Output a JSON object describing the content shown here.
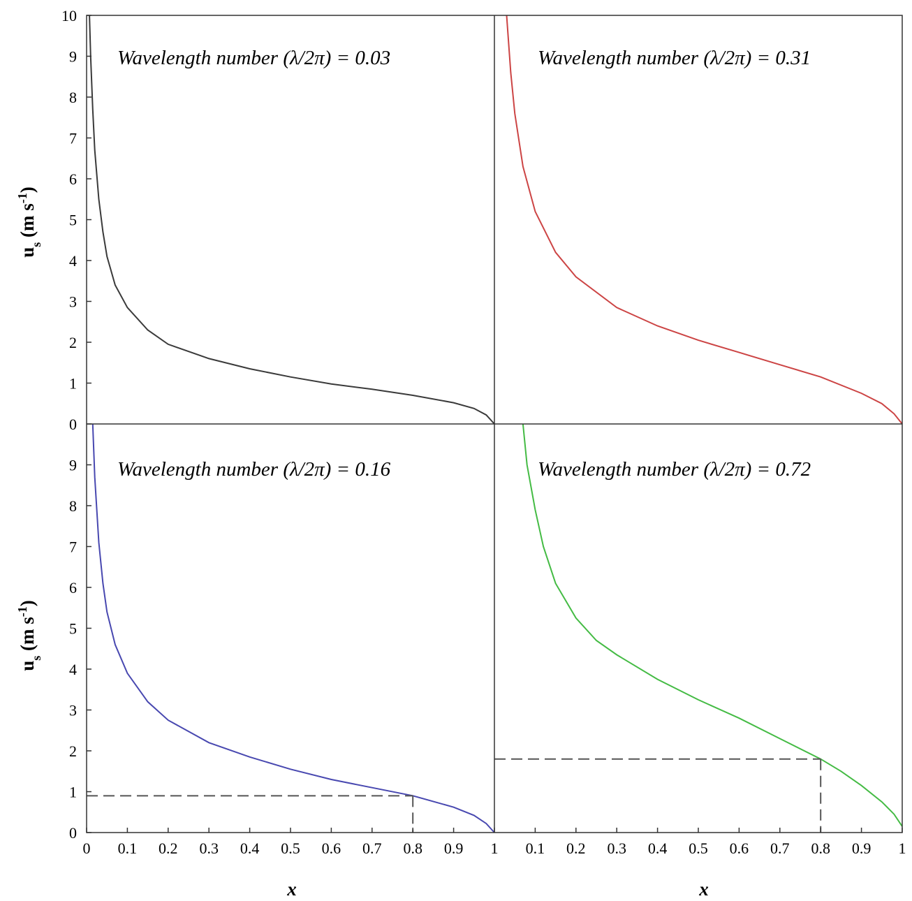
{
  "chart_data": [
    {
      "type": "line",
      "panel": "top-left",
      "title": "Wavelength number (λ/2π) = 0.03",
      "xlabel": "",
      "ylabel": "u_s (m s^-1)",
      "ylim": [
        0,
        10
      ],
      "xlim": [
        0,
        1
      ],
      "yticks": [
        "0",
        "1",
        "2",
        "3",
        "4",
        "5",
        "6",
        "7",
        "8",
        "9",
        "10"
      ],
      "xticks": [],
      "color": "#3a3a3a",
      "series": [
        {
          "x": [
            0.007,
            0.01,
            0.015,
            0.02,
            0.03,
            0.04,
            0.05,
            0.07,
            0.1,
            0.15,
            0.2,
            0.3,
            0.4,
            0.5,
            0.6,
            0.7,
            0.8,
            0.9,
            0.95,
            0.98,
            1.0
          ],
          "y": [
            10,
            9.0,
            7.7,
            6.7,
            5.5,
            4.7,
            4.1,
            3.4,
            2.85,
            2.3,
            1.95,
            1.6,
            1.35,
            1.15,
            0.98,
            0.85,
            0.7,
            0.52,
            0.38,
            0.22,
            0.0
          ]
        }
      ]
    },
    {
      "type": "line",
      "panel": "top-right",
      "title": "Wavelength number (λ/2π) = 0.31",
      "xlabel": "",
      "ylabel": "",
      "ylim": [
        0,
        10
      ],
      "xlim": [
        0,
        1
      ],
      "yticks": [],
      "xticks": [],
      "color": "#cc4444",
      "series": [
        {
          "x": [
            0.03,
            0.04,
            0.05,
            0.07,
            0.1,
            0.15,
            0.2,
            0.3,
            0.4,
            0.5,
            0.6,
            0.7,
            0.8,
            0.9,
            0.95,
            0.98,
            1.0
          ],
          "y": [
            10,
            8.6,
            7.6,
            6.3,
            5.2,
            4.2,
            3.6,
            2.85,
            2.4,
            2.05,
            1.75,
            1.45,
            1.15,
            0.75,
            0.5,
            0.25,
            0.0
          ]
        }
      ]
    },
    {
      "type": "line",
      "panel": "bottom-left",
      "title": "Wavelength number (λ/2π) = 0.16",
      "xlabel": "x",
      "ylabel": "u_s (m s^-1)",
      "ylim": [
        0,
        10
      ],
      "xlim": [
        0,
        1
      ],
      "yticks": [
        "0",
        "1",
        "2",
        "3",
        "4",
        "5",
        "6",
        "7",
        "8",
        "9"
      ],
      "xticks": [
        "0",
        "0.1",
        "0.2",
        "0.3",
        "0.4",
        "0.5",
        "0.6",
        "0.7",
        "0.8",
        "0.9",
        "1"
      ],
      "color": "#4848b0",
      "series": [
        {
          "x": [
            0.015,
            0.02,
            0.03,
            0.04,
            0.05,
            0.07,
            0.1,
            0.15,
            0.2,
            0.3,
            0.4,
            0.5,
            0.6,
            0.7,
            0.8,
            0.9,
            0.95,
            0.98,
            1.0
          ],
          "y": [
            10,
            8.7,
            7.1,
            6.1,
            5.4,
            4.6,
            3.9,
            3.2,
            2.75,
            2.2,
            1.85,
            1.55,
            1.3,
            1.1,
            0.9,
            0.62,
            0.42,
            0.22,
            0.0
          ]
        }
      ],
      "reference": {
        "x": 0.8,
        "y": 0.9
      }
    },
    {
      "type": "line",
      "panel": "bottom-right",
      "title": "Wavelength number (λ/2π) = 0.72",
      "xlabel": "x",
      "ylabel": "",
      "ylim": [
        0,
        10
      ],
      "xlim": [
        0,
        1
      ],
      "yticks": [],
      "xticks": [
        "0.1",
        "0.2",
        "0.3",
        "0.4",
        "0.5",
        "0.6",
        "0.7",
        "0.8",
        "0.9",
        "1"
      ],
      "color": "#44bb44",
      "series": [
        {
          "x": [
            0.07,
            0.08,
            0.1,
            0.12,
            0.15,
            0.2,
            0.25,
            0.3,
            0.4,
            0.5,
            0.6,
            0.7,
            0.8,
            0.85,
            0.9,
            0.95,
            0.98,
            1.0
          ],
          "y": [
            10,
            9.0,
            7.9,
            7.0,
            6.1,
            5.25,
            4.7,
            4.35,
            3.75,
            3.25,
            2.8,
            2.3,
            1.8,
            1.5,
            1.15,
            0.75,
            0.45,
            0.15
          ]
        }
      ],
      "reference": {
        "x": 0.8,
        "y": 1.8
      }
    }
  ]
}
